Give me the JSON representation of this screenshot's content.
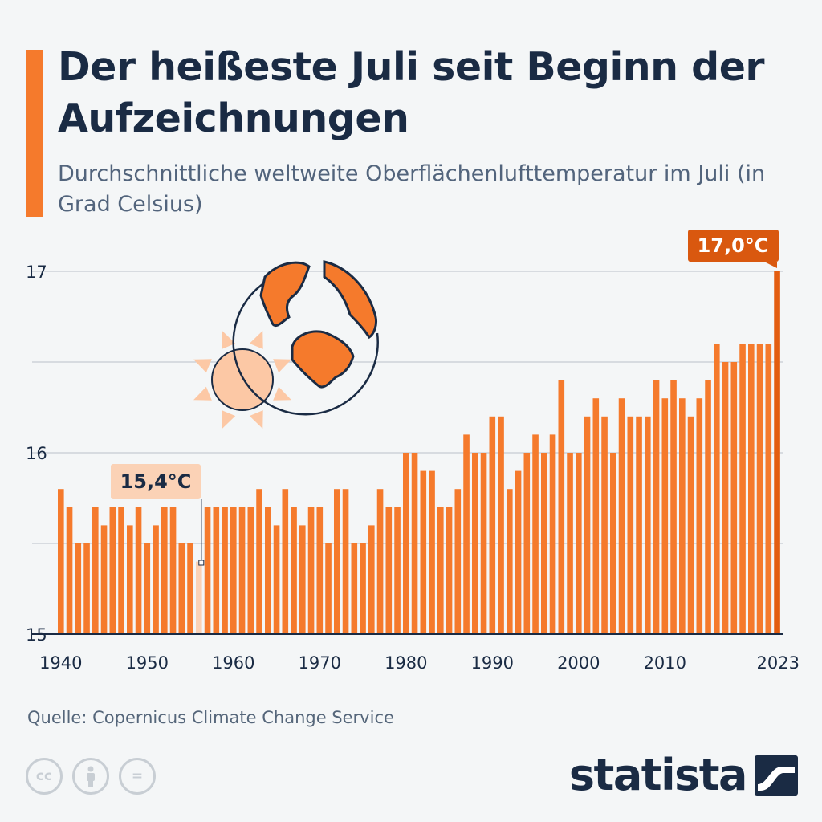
{
  "header": {
    "title": "Der heißeste Juli seit Beginn der Aufzeichnungen",
    "subtitle": "Durchschnittliche weltweite Oberflächenlufttemperatur im Juli (in Grad Celsius)"
  },
  "chart_data": {
    "type": "bar",
    "x": [
      1940,
      1941,
      1942,
      1943,
      1944,
      1945,
      1946,
      1947,
      1948,
      1949,
      1950,
      1951,
      1952,
      1953,
      1954,
      1955,
      1956,
      1957,
      1958,
      1959,
      1960,
      1961,
      1962,
      1963,
      1964,
      1965,
      1966,
      1967,
      1968,
      1969,
      1970,
      1971,
      1972,
      1973,
      1974,
      1975,
      1976,
      1977,
      1978,
      1979,
      1980,
      1981,
      1982,
      1983,
      1984,
      1985,
      1986,
      1987,
      1988,
      1989,
      1990,
      1991,
      1992,
      1993,
      1994,
      1995,
      1996,
      1997,
      1998,
      1999,
      2000,
      2001,
      2002,
      2003,
      2004,
      2005,
      2006,
      2007,
      2008,
      2009,
      2010,
      2011,
      2012,
      2013,
      2014,
      2015,
      2016,
      2017,
      2018,
      2019,
      2020,
      2021,
      2022,
      2023
    ],
    "values": [
      15.8,
      15.7,
      15.5,
      15.5,
      15.7,
      15.6,
      15.7,
      15.7,
      15.6,
      15.7,
      15.5,
      15.6,
      15.7,
      15.7,
      15.5,
      15.5,
      15.4,
      15.7,
      15.7,
      15.7,
      15.7,
      15.7,
      15.7,
      15.8,
      15.7,
      15.6,
      15.8,
      15.7,
      15.6,
      15.7,
      15.7,
      15.5,
      15.8,
      15.8,
      15.5,
      15.5,
      15.6,
      15.8,
      15.7,
      15.7,
      16.0,
      16.0,
      15.9,
      15.9,
      15.7,
      15.7,
      15.8,
      16.1,
      16.0,
      16.0,
      16.2,
      16.2,
      15.8,
      15.9,
      16.0,
      16.1,
      16.0,
      16.1,
      16.4,
      16.0,
      16.0,
      16.2,
      16.3,
      16.2,
      16.0,
      16.3,
      16.2,
      16.2,
      16.2,
      16.4,
      16.3,
      16.4,
      16.3,
      16.2,
      16.3,
      16.4,
      16.6,
      16.5,
      16.5,
      16.6,
      16.6,
      16.6,
      16.6,
      17.0
    ],
    "ylim": [
      15,
      17
    ],
    "y_ticks": [
      "15",
      "16",
      "17"
    ],
    "x_ticks": [
      "1940",
      "1950",
      "1960",
      "1970",
      "1980",
      "1990",
      "2000",
      "2010",
      "2023"
    ],
    "x_tick_years": [
      1940,
      1950,
      1960,
      1970,
      1980,
      1990,
      2000,
      2010,
      2023
    ],
    "gridlines": true,
    "annotations": [
      {
        "year": 1956,
        "label": "15,4°C",
        "style": "light"
      },
      {
        "year": 2023,
        "label": "17,0°C",
        "style": "dark"
      }
    ],
    "colors": {
      "bar": "#f57a2c",
      "bar_low": "#fbd2b6",
      "bar_high": "#e35d10",
      "label_low_bg": "#fbd2b6",
      "label_high_bg": "#d9580f",
      "grid": "#c5cbd2",
      "axis": "#1a2b44"
    }
  },
  "footer": {
    "source": "Quelle: Copernicus Climate Change Service",
    "brand": "statista",
    "license_icons": [
      "cc-icon",
      "attribution-icon",
      "no-derivatives-icon"
    ],
    "license_glyphs": [
      "cc",
      "="
    ]
  }
}
